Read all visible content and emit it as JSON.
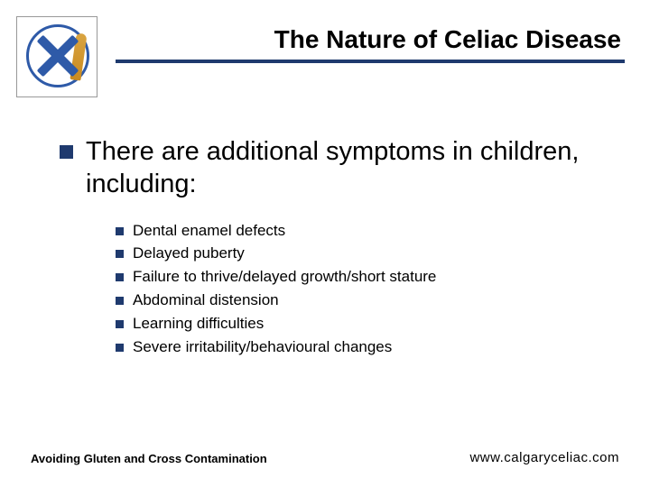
{
  "title": "The Nature of Celiac Disease",
  "main_text": "There are additional symptoms in children, including:",
  "sub_items": [
    "Dental enamel defects",
    "Delayed puberty",
    "Failure to thrive/delayed growth/short stature",
    "Abdominal distension",
    "Learning difficulties",
    "Severe irritability/behavioural changes"
  ],
  "footer_left": "Avoiding Gluten and Cross Contamination",
  "footer_right": "www.calgaryceliac.com",
  "colors": {
    "accent": "#1f3a6e",
    "logo_blue": "#2e5aa8",
    "wheat": "#c98a20",
    "background": "#ffffff",
    "text": "#000000"
  },
  "typography": {
    "title_fontsize": 28,
    "main_fontsize": 29,
    "sub_fontsize": 17,
    "footer_left_fontsize": 13,
    "footer_right_fontsize": 15,
    "font_family": "Verdana"
  },
  "layout": {
    "slide_width": 720,
    "slide_height": 540,
    "bullet_lg_size": 15,
    "bullet_sm_size": 9
  }
}
